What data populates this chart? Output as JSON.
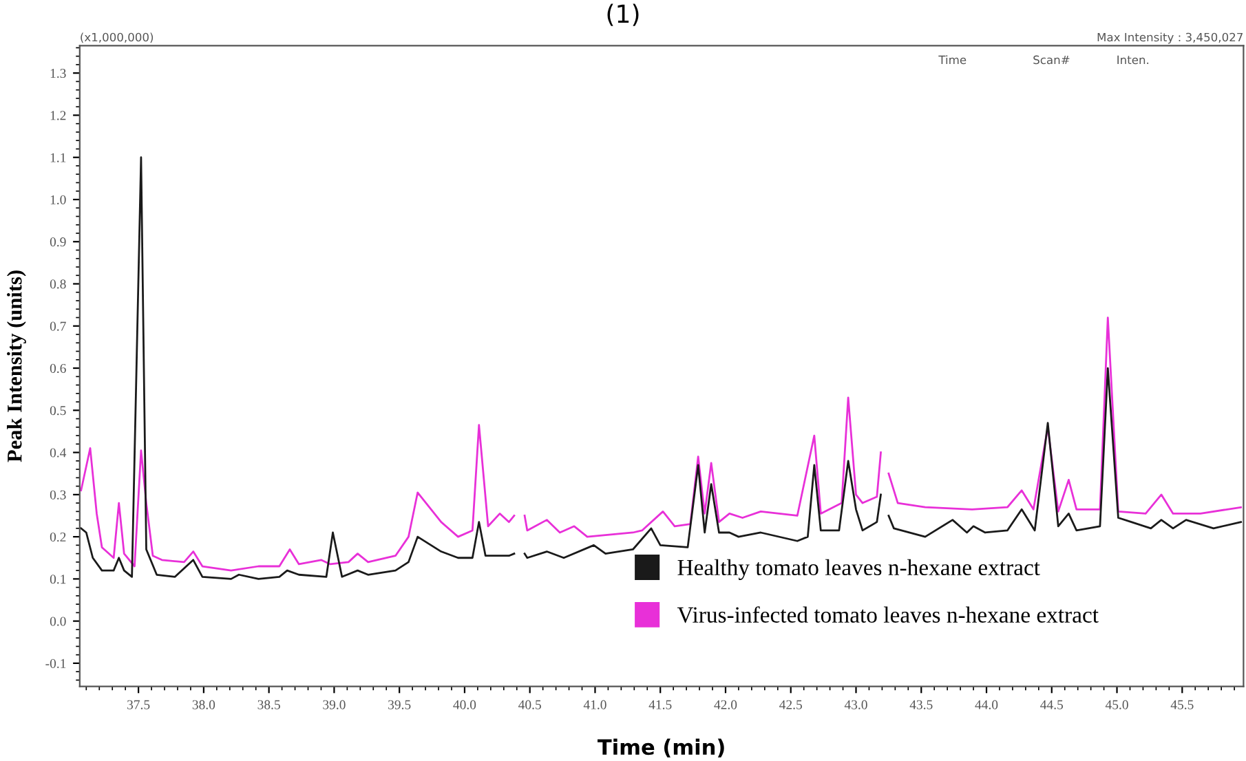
{
  "chart_data": {
    "type": "line",
    "title": "(1)",
    "xlabel": "Time (min)",
    "ylabel": "Peak Intensity (units)",
    "annotations": [
      "(x1,000,000)",
      "Max Intensity : 3,450,027",
      "Time",
      "Scan#",
      "Inten."
    ],
    "xlim": [
      37.05,
      45.97
    ],
    "ylim": [
      -0.155,
      1.365
    ],
    "xticks": [
      37.5,
      {
        "value": 38,
        "label": "38.0"
      },
      38.5,
      {
        "value": 39,
        "label": "39.0"
      },
      39.5,
      {
        "value": 40,
        "label": "40.0"
      },
      40.5,
      {
        "value": 41,
        "label": "41.0"
      },
      41.5,
      {
        "value": 42,
        "label": "42.0"
      },
      42.5,
      {
        "value": 43,
        "label": "43.0"
      },
      43.5,
      {
        "value": 44,
        "label": "44.0"
      },
      44.5,
      {
        "value": 45,
        "label": "45.0"
      },
      45.5
    ],
    "yticks": [
      -0.1,
      {
        "value": 0,
        "label": "0.0"
      },
      0.1,
      0.2,
      0.3,
      0.4,
      0.5,
      0.6,
      0.7,
      0.8,
      0.9,
      {
        "value": 1,
        "label": "1.0"
      },
      1.1,
      1.2,
      1.3
    ],
    "legend": "bottom right",
    "grid": false,
    "marker": "none",
    "line_style": "solid",
    "series": [
      {
        "name": "Virus-infected tomato leaves n-hexane extract",
        "color": "#e830d8",
        "x": [
          37.06,
          37.13,
          37.18,
          37.22,
          37.31,
          37.35,
          37.39,
          37.47,
          37.52,
          37.56,
          37.61,
          37.68,
          37.85,
          37.92,
          37.99,
          38.21,
          38.42,
          38.58,
          38.66,
          38.73,
          38.9,
          38.97,
          39.11,
          39.18,
          39.26,
          39.47,
          39.57,
          39.64,
          39.82,
          39.95,
          40.06,
          40.11,
          40.18,
          40.27,
          40.34,
          40.38,
          40.42,
          40.46,
          40.48,
          40.63,
          40.73,
          40.84,
          40.94,
          41.29,
          41.36,
          41.52,
          41.61,
          41.73,
          41.79,
          41.84,
          41.89,
          41.95,
          42.03,
          42.13,
          42.27,
          42.55,
          42.68,
          42.73,
          42.89,
          42.94,
          43.0,
          43.05,
          43.16,
          43.19,
          43.21,
          43.25,
          43.32,
          43.53,
          43.89,
          44.16,
          44.27,
          44.36,
          44.47,
          44.55,
          44.63,
          44.69,
          44.87,
          44.93,
          45.01,
          45.22,
          45.34,
          45.43,
          45.64,
          45.95
        ],
        "values": [
          0.31,
          0.41,
          0.255,
          0.175,
          0.15,
          0.28,
          0.16,
          0.13,
          0.405,
          0.28,
          0.155,
          0.145,
          0.14,
          0.165,
          0.13,
          0.12,
          0.13,
          0.13,
          0.17,
          0.135,
          0.145,
          0.135,
          0.14,
          0.16,
          0.14,
          0.155,
          0.2,
          0.305,
          0.235,
          0.2,
          0.215,
          0.465,
          0.225,
          0.255,
          0.235,
          0.25,
          null,
          0.25,
          0.215,
          0.24,
          0.21,
          0.225,
          0.2,
          0.21,
          0.215,
          0.26,
          0.225,
          0.23,
          0.39,
          0.255,
          0.375,
          0.235,
          0.255,
          0.245,
          0.26,
          0.25,
          0.44,
          0.255,
          0.28,
          0.53,
          0.3,
          0.28,
          0.295,
          0.4,
          null,
          0.35,
          0.28,
          0.27,
          0.265,
          0.27,
          0.31,
          0.265,
          0.46,
          0.26,
          0.335,
          0.265,
          0.265,
          0.72,
          0.26,
          0.255,
          0.3,
          0.255,
          0.255,
          0.27
        ]
      },
      {
        "name": "Healthy tomato leaves n-hexane extract",
        "color": "#1a1a1a",
        "x": [
          37.06,
          37.1,
          37.15,
          37.22,
          37.31,
          37.35,
          37.39,
          37.45,
          37.52,
          37.56,
          37.64,
          37.78,
          37.92,
          37.99,
          38.21,
          38.27,
          38.42,
          38.58,
          38.64,
          38.73,
          38.94,
          38.99,
          39.06,
          39.18,
          39.26,
          39.47,
          39.57,
          39.64,
          39.82,
          39.95,
          40.06,
          40.11,
          40.16,
          40.34,
          40.38,
          40.42,
          40.46,
          40.48,
          40.63,
          40.76,
          40.99,
          41.08,
          41.29,
          41.43,
          41.5,
          41.71,
          41.79,
          41.84,
          41.89,
          41.95,
          42.03,
          42.1,
          42.27,
          42.55,
          42.63,
          42.68,
          42.73,
          42.87,
          42.94,
          43.0,
          43.05,
          43.16,
          43.19,
          43.21,
          43.25,
          43.29,
          43.53,
          43.74,
          43.85,
          43.9,
          43.99,
          44.16,
          44.27,
          44.37,
          44.47,
          44.55,
          44.63,
          44.69,
          44.87,
          44.93,
          45.01,
          45.11,
          45.26,
          45.34,
          45.43,
          45.53,
          45.74,
          45.95
        ],
        "values": [
          0.22,
          0.21,
          0.15,
          0.12,
          0.12,
          0.15,
          0.12,
          0.105,
          1.1,
          0.17,
          0.11,
          0.105,
          0.145,
          0.105,
          0.1,
          0.11,
          0.1,
          0.105,
          0.12,
          0.11,
          0.105,
          0.21,
          0.105,
          0.12,
          0.11,
          0.12,
          0.14,
          0.2,
          0.165,
          0.15,
          0.15,
          0.235,
          0.155,
          0.155,
          0.16,
          null,
          0.16,
          0.15,
          0.165,
          0.15,
          0.18,
          0.16,
          0.17,
          0.22,
          0.18,
          0.175,
          0.37,
          0.21,
          0.325,
          0.21,
          0.21,
          0.2,
          0.21,
          0.19,
          0.2,
          0.37,
          0.215,
          0.215,
          0.38,
          0.265,
          0.215,
          0.235,
          0.3,
          null,
          0.25,
          0.22,
          0.2,
          0.24,
          0.21,
          0.225,
          0.21,
          0.215,
          0.265,
          0.215,
          0.47,
          0.225,
          0.255,
          0.215,
          0.225,
          0.6,
          0.245,
          0.235,
          0.22,
          0.24,
          0.22,
          0.24,
          0.22,
          0.235
        ]
      }
    ]
  }
}
